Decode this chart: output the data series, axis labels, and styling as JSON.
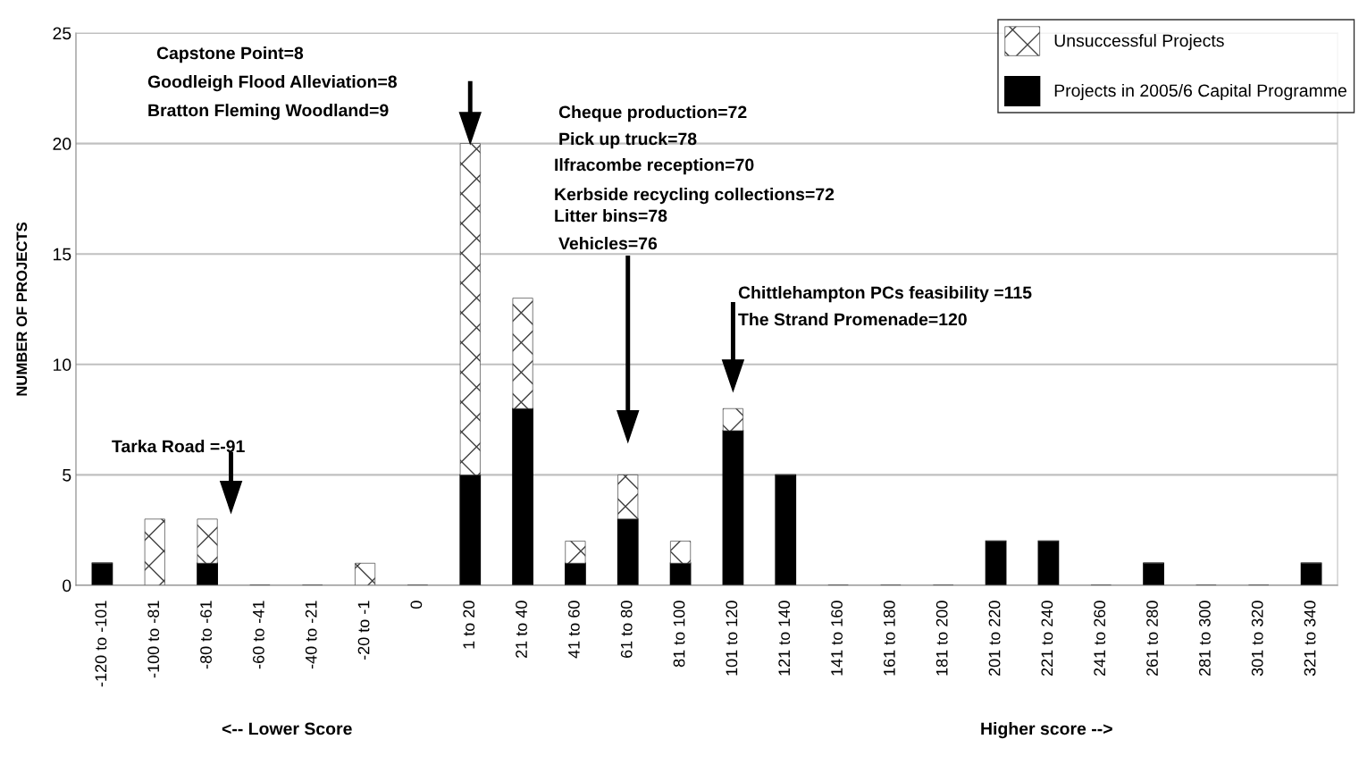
{
  "chart_data": {
    "type": "bar",
    "stacked": true,
    "ylabel": "NUMBER OF PROJECTS",
    "categories": [
      "-120 to -101",
      "-100 to -81",
      "-80 to -61",
      "-60 to -41",
      "-40 to -21",
      "-20 to -1",
      "0",
      "1 to 20",
      "21 to 40",
      "41 to 60",
      "61 to 80",
      "81 to 100",
      "101 to 120",
      "121 to 140",
      "141 to 160",
      "161 to 180",
      "181 to 200",
      "201 to 220",
      "221 to 240",
      "241 to 260",
      "261 to 280",
      "281 to 300",
      "301 to 320",
      "321 to 340"
    ],
    "series": [
      {
        "name": "Projects in 2005/6 Capital Programme",
        "color": "#000000",
        "values": [
          1,
          0,
          1,
          0,
          0,
          0,
          0,
          5,
          8,
          1,
          3,
          1,
          7,
          5,
          0,
          0,
          0,
          2,
          2,
          0,
          1,
          0,
          0,
          1
        ]
      },
      {
        "name": "Unsuccessful Projects",
        "color": "#404040",
        "values": [
          0,
          3,
          2,
          0,
          0,
          1,
          0,
          15,
          5,
          1,
          2,
          1,
          1,
          0,
          0,
          0,
          0,
          0,
          0,
          0,
          0,
          0,
          0,
          0
        ]
      }
    ],
    "ylim": [
      0,
      25
    ],
    "yticks": [
      0,
      5,
      10,
      15,
      20,
      25
    ],
    "grid": "y",
    "legend": "top right",
    "annotations": [
      "Capstone Point=8",
      "Goodleigh Flood Alleviation=8",
      "Bratton Fleming Woodland=9",
      "Cheque production=72",
      "Pick up truck=78",
      "Ilfracombe reception=70",
      "Kerbside recycling collections=72",
      "Litter bins=78",
      "Vehicles=76",
      "Chittlehampton PCs feasibility =115",
      "The Strand Promenade=120",
      "Tarka Road =-91",
      "<-- Lower Score",
      "Higher score -->"
    ]
  }
}
